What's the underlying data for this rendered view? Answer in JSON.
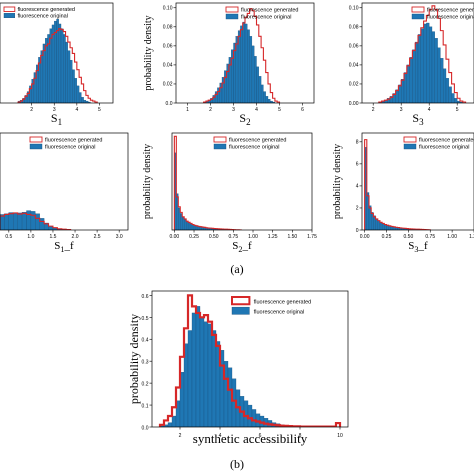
{
  "captions": {
    "a": "(a)",
    "b": "(b)"
  },
  "legend": {
    "generated": "fluorescence generated",
    "original": "fluorescence original"
  },
  "colors": {
    "generated": "#d62728",
    "original": "#1f77b4",
    "original_edge": "#1a4f7a"
  },
  "chart_data": [
    {
      "id": "S1",
      "type": "histogram",
      "xlabel": "S",
      "xlabel_sub": "1",
      "ylabel": "",
      "xlim": [
        0.6,
        5.6
      ],
      "ylim": [
        0,
        0.105
      ],
      "xticks": [
        "2",
        "3",
        "4",
        "5"
      ],
      "yticks": [],
      "bins": {
        "start": 1.4,
        "width": 0.1
      },
      "original": [
        0.002,
        0.003,
        0.005,
        0.008,
        0.012,
        0.018,
        0.025,
        0.032,
        0.04,
        0.048,
        0.055,
        0.062,
        0.068,
        0.072,
        0.078,
        0.082,
        0.086,
        0.088,
        0.083,
        0.078,
        0.072,
        0.064,
        0.055,
        0.045,
        0.035,
        0.026,
        0.018,
        0.011,
        0.006,
        0.003,
        0.002,
        0.001
      ],
      "generated": [
        0.001,
        0.002,
        0.004,
        0.007,
        0.01,
        0.015,
        0.02,
        0.026,
        0.034,
        0.042,
        0.05,
        0.055,
        0.06,
        0.062,
        0.068,
        0.072,
        0.074,
        0.076,
        0.078,
        0.077,
        0.075,
        0.07,
        0.064,
        0.058,
        0.052,
        0.043,
        0.035,
        0.027,
        0.02,
        0.013,
        0.008,
        0.005,
        0.003,
        0.002,
        0.001
      ]
    },
    {
      "id": "S2",
      "type": "histogram",
      "xlabel": "S",
      "xlabel_sub": "2",
      "ylabel": "probability density",
      "xlim": [
        0.5,
        6.5
      ],
      "ylim": [
        0,
        0.105
      ],
      "xticks": [
        "1",
        "2",
        "3",
        "4",
        "5",
        "6"
      ],
      "yticks": [
        "0.0",
        "0.02",
        "0.04",
        "0.06",
        "0.08",
        "0.10"
      ],
      "bins": {
        "start": 1.7,
        "width": 0.1
      },
      "original": [
        0.001,
        0.002,
        0.003,
        0.005,
        0.008,
        0.012,
        0.016,
        0.021,
        0.027,
        0.034,
        0.041,
        0.048,
        0.056,
        0.063,
        0.07,
        0.076,
        0.081,
        0.085,
        0.083,
        0.077,
        0.07,
        0.06,
        0.049,
        0.038,
        0.028,
        0.019,
        0.012,
        0.007,
        0.004,
        0.002,
        0.001
      ],
      "generated": [
        0.001,
        0.002,
        0.003,
        0.004,
        0.006,
        0.009,
        0.012,
        0.016,
        0.021,
        0.027,
        0.033,
        0.04,
        0.047,
        0.055,
        0.062,
        0.07,
        0.077,
        0.084,
        0.09,
        0.094,
        0.099,
        0.097,
        0.091,
        0.082,
        0.07,
        0.058,
        0.045,
        0.032,
        0.02,
        0.011,
        0.005,
        0.002,
        0.001
      ]
    },
    {
      "id": "S3",
      "type": "histogram",
      "xlabel": "S",
      "xlabel_sub": "3",
      "ylabel": "",
      "xlim": [
        1.6,
        5.6
      ],
      "ylim": [
        0,
        0.105
      ],
      "xticks": [
        "2",
        "3",
        "4",
        "5"
      ],
      "yticks": [
        "0.00",
        "0.02",
        "0.04",
        "0.06",
        "0.08",
        "0.10"
      ],
      "bins": {
        "start": 2.2,
        "width": 0.1
      },
      "original": [
        0.001,
        0.002,
        0.003,
        0.005,
        0.007,
        0.01,
        0.014,
        0.019,
        0.025,
        0.032,
        0.04,
        0.048,
        0.056,
        0.064,
        0.072,
        0.078,
        0.083,
        0.084,
        0.08,
        0.075,
        0.068,
        0.058,
        0.047,
        0.036,
        0.026,
        0.017,
        0.01,
        0.005,
        0.002,
        0.001
      ],
      "generated": [
        0.001,
        0.002,
        0.003,
        0.004,
        0.006,
        0.009,
        0.013,
        0.018,
        0.024,
        0.031,
        0.039,
        0.047,
        0.055,
        0.063,
        0.071,
        0.079,
        0.086,
        0.092,
        0.098,
        0.102,
        0.098,
        0.089,
        0.076,
        0.061,
        0.046,
        0.032,
        0.02,
        0.011,
        0.005,
        0.002,
        0.001
      ]
    },
    {
      "id": "S1_f",
      "type": "histogram",
      "xlabel": "S",
      "xlabel_sub": "1",
      "xlabel_suffix": "_f",
      "ylabel": "",
      "xlim": [
        0.3,
        3.2
      ],
      "ylim": [
        0,
        2.5
      ],
      "xticks": [
        "0.5",
        "1.0",
        "1.5",
        "2.0",
        "2.5",
        "3.0"
      ],
      "yticks": [],
      "bins": {
        "start": 0.3,
        "width": 0.1
      },
      "original": [
        0.4,
        0.42,
        0.45,
        0.43,
        0.44,
        0.46,
        0.5,
        0.48,
        0.42,
        0.3,
        0.18,
        0.1,
        0.05,
        0.03,
        0.02,
        0.01
      ],
      "generated": [
        0.36,
        0.4,
        0.42,
        0.44,
        0.41,
        0.43,
        0.4,
        0.38,
        0.3,
        0.22,
        0.16,
        0.1,
        0.06,
        0.03,
        0.02,
        0.01
      ]
    },
    {
      "id": "S2_f",
      "type": "histogram",
      "xlabel": "S",
      "xlabel_sub": "2",
      "xlabel_suffix": "_f",
      "ylabel": "probability density",
      "xlim": [
        -0.03,
        1.75
      ],
      "ylim": [
        0,
        8.8
      ],
      "xticks": [
        "0.00",
        "0.25",
        "0.50",
        "0.75",
        "1.00",
        "1.25",
        "1.50",
        "1.75"
      ],
      "yticks": [],
      "bins": {
        "start": 0.0,
        "width": 0.025
      },
      "original": [
        7.0,
        3.3,
        2.0,
        1.5,
        1.2,
        1.0,
        0.8,
        0.7,
        0.6,
        0.5,
        0.45,
        0.4,
        0.35,
        0.3,
        0.28,
        0.25,
        0.22,
        0.2,
        0.18,
        0.16,
        0.15,
        0.13,
        0.12,
        0.1,
        0.09,
        0.08,
        0.07,
        0.06,
        0.05,
        0.04
      ],
      "generated": [
        8.5,
        3.0,
        2.1,
        1.6,
        1.2,
        1.0,
        0.8,
        0.7,
        0.6,
        0.5,
        0.42,
        0.38,
        0.33,
        0.3,
        0.27,
        0.24,
        0.2,
        0.18,
        0.17,
        0.15,
        0.13,
        0.12,
        0.11,
        0.1,
        0.09,
        0.08,
        0.07,
        0.06,
        0.05,
        0.04,
        0.03,
        0.02,
        0.015,
        0.01
      ]
    },
    {
      "id": "S3_f",
      "type": "histogram",
      "xlabel": "S",
      "xlabel_sub": "3",
      "xlabel_suffix": "_f",
      "ylabel": "probability density",
      "xlim": [
        -0.03,
        1.25
      ],
      "ylim": [
        0,
        8.8
      ],
      "xticks": [
        "0.00",
        "0.25",
        "0.50",
        "0.75",
        "1.00",
        "1.25"
      ],
      "yticks": [
        "0",
        "2",
        "4",
        "6",
        "8"
      ],
      "bins": {
        "start": 0.0,
        "width": 0.025
      },
      "original": [
        7.5,
        3.4,
        2.2,
        1.6,
        1.3,
        1.0,
        0.85,
        0.7,
        0.6,
        0.5,
        0.42,
        0.36,
        0.3,
        0.26,
        0.22,
        0.2,
        0.17,
        0.15,
        0.13,
        0.12,
        0.1,
        0.09,
        0.08,
        0.07,
        0.06,
        0.05,
        0.04,
        0.03
      ],
      "generated": [
        8.2,
        3.1,
        2.0,
        1.5,
        1.2,
        1.0,
        0.85,
        0.7,
        0.6,
        0.5,
        0.44,
        0.38,
        0.33,
        0.29,
        0.25,
        0.22,
        0.19,
        0.17,
        0.15,
        0.13,
        0.11,
        0.1,
        0.09,
        0.08,
        0.07,
        0.06,
        0.05,
        0.04,
        0.03,
        0.02
      ]
    },
    {
      "id": "SA",
      "type": "histogram",
      "xlabel": "synthetic accessibility",
      "ylabel": "probability density",
      "xlim": [
        0.6,
        10.4
      ],
      "ylim": [
        0,
        0.62
      ],
      "xticks": [
        "2",
        "4",
        "6",
        "8",
        "10"
      ],
      "yticks": [
        "0.0",
        "0.1",
        "0.2",
        "0.3",
        "0.4",
        "0.5",
        "0.6"
      ],
      "bins": {
        "start": 1.0,
        "width": 0.2
      },
      "original": [
        0.005,
        0.01,
        0.02,
        0.05,
        0.12,
        0.25,
        0.38,
        0.44,
        0.52,
        0.55,
        0.5,
        0.48,
        0.47,
        0.44,
        0.39,
        0.35,
        0.3,
        0.27,
        0.22,
        0.17,
        0.14,
        0.12,
        0.1,
        0.08,
        0.06,
        0.05,
        0.04,
        0.03,
        0.02,
        0.015,
        0.01,
        0.008,
        0.006,
        0.004,
        0.003,
        0.002,
        0.002,
        0.001,
        0.001,
        0.001,
        0.001,
        0.001,
        0.001,
        0.001,
        0.001
      ],
      "generated": [
        0.01,
        0.03,
        0.05,
        0.09,
        0.18,
        0.32,
        0.45,
        0.6,
        0.55,
        0.52,
        0.5,
        0.51,
        0.48,
        0.42,
        0.37,
        0.28,
        0.22,
        0.17,
        0.12,
        0.09,
        0.07,
        0.05,
        0.04,
        0.03,
        0.025,
        0.02,
        0.015,
        0.012,
        0.01,
        0.008,
        0.006,
        0.005,
        0.004,
        0.003,
        0.003,
        0.002,
        0.002,
        0.002,
        0.002,
        0.002,
        0.002,
        0.002,
        0.002,
        0.002,
        0.018
      ]
    }
  ]
}
